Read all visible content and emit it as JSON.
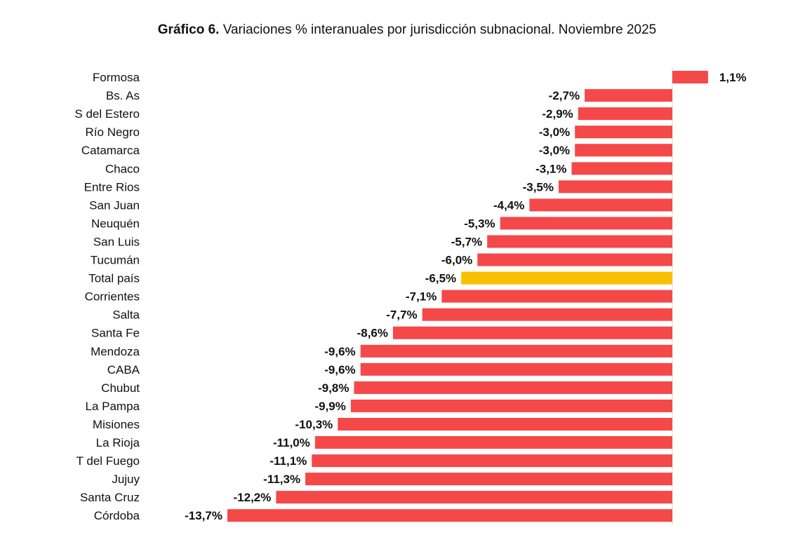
{
  "chart_data": {
    "type": "bar",
    "orientation": "horizontal",
    "title_prefix": "Gráfico 6.",
    "title": "Variaciones % interanuales por jurisdicción subnacional. Noviembre 2025",
    "xlabel": "",
    "ylabel": "",
    "categories": [
      "Formosa",
      "Bs. As",
      "S del Estero",
      "Río Negro",
      "Catamarca",
      "Chaco",
      "Entre Rios",
      "San Juan",
      "Neuquén",
      "San Luis",
      "Tucumán",
      "Total país",
      "Corrientes",
      "Salta",
      "Santa Fe",
      "Mendoza",
      "CABA",
      "Chubut",
      "La Pampa",
      "Misiones",
      "La Rioja",
      "T del Fuego",
      "Jujuy",
      "Santa Cruz",
      "Córdoba"
    ],
    "values": [
      1.1,
      -2.7,
      -2.9,
      -3.0,
      -3.0,
      -3.1,
      -3.5,
      -4.4,
      -5.3,
      -5.7,
      -6.0,
      -6.5,
      -7.1,
      -7.7,
      -8.6,
      -9.6,
      -9.6,
      -9.8,
      -9.9,
      -10.3,
      -11.0,
      -11.1,
      -11.3,
      -12.2,
      -13.7
    ],
    "labels": [
      "1,1%",
      "-2,7%",
      "-2,9%",
      "-3,0%",
      "-3,0%",
      "-3,1%",
      "-3,5%",
      "-4,4%",
      "-5,3%",
      "-5,7%",
      "-6,0%",
      "-6,5%",
      "-7,1%",
      "-7,7%",
      "-8,6%",
      "-9,6%",
      "-9,6%",
      "-9,8%",
      "-9,9%",
      "-10,3%",
      "-11,0%",
      "-11,1%",
      "-11,3%",
      "-12,2%",
      "-13,7%"
    ],
    "highlight_category": "Total país",
    "colors": {
      "bar": "#f54848",
      "highlight": "#f8c000",
      "axis": "#d9d9d9"
    },
    "xlim": [
      -13.7,
      1.1
    ],
    "grid": false,
    "legend": "none"
  }
}
